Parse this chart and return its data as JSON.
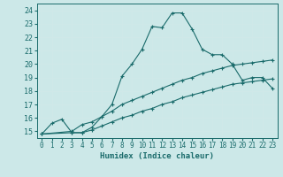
{
  "bg_color": "#cce8e8",
  "grid_color": "#b0d4d4",
  "line_color": "#1a6b6b",
  "xlabel": "Humidex (Indice chaleur)",
  "xlim": [
    -0.5,
    23.5
  ],
  "ylim": [
    14.5,
    24.5
  ],
  "yticks": [
    15,
    16,
    17,
    18,
    19,
    20,
    21,
    22,
    23,
    24
  ],
  "xticks": [
    0,
    1,
    2,
    3,
    4,
    5,
    6,
    7,
    8,
    9,
    10,
    11,
    12,
    13,
    14,
    15,
    16,
    17,
    18,
    19,
    20,
    21,
    22,
    23
  ],
  "curve1_x": [
    0,
    1,
    2,
    3,
    4,
    5,
    6,
    7,
    8,
    9,
    10,
    11,
    12,
    13,
    14,
    15,
    16,
    17,
    18,
    19,
    20,
    21,
    22,
    23
  ],
  "curve1_y": [
    14.8,
    15.6,
    15.9,
    14.9,
    14.9,
    15.3,
    16.1,
    17.0,
    19.1,
    20.0,
    21.1,
    22.8,
    22.7,
    23.8,
    23.8,
    22.6,
    21.1,
    20.7,
    20.7,
    20.0,
    18.8,
    19.0,
    19.0,
    18.2
  ],
  "curve2_x": [
    0,
    3,
    4,
    5,
    6,
    7,
    8,
    9,
    10,
    11,
    12,
    13,
    14,
    15,
    16,
    17,
    18,
    19,
    20,
    21,
    22,
    23
  ],
  "curve2_y": [
    14.8,
    15.0,
    15.5,
    15.7,
    16.1,
    16.5,
    17.0,
    17.3,
    17.6,
    17.9,
    18.2,
    18.5,
    18.8,
    19.0,
    19.3,
    19.5,
    19.7,
    19.9,
    20.0,
    20.1,
    20.2,
    20.3
  ],
  "curve3_x": [
    0,
    3,
    4,
    5,
    6,
    7,
    8,
    9,
    10,
    11,
    12,
    13,
    14,
    15,
    16,
    17,
    18,
    19,
    20,
    21,
    22,
    23
  ],
  "curve3_y": [
    14.8,
    14.9,
    14.9,
    15.1,
    15.4,
    15.7,
    16.0,
    16.2,
    16.5,
    16.7,
    17.0,
    17.2,
    17.5,
    17.7,
    17.9,
    18.1,
    18.3,
    18.5,
    18.6,
    18.7,
    18.8,
    18.9
  ]
}
